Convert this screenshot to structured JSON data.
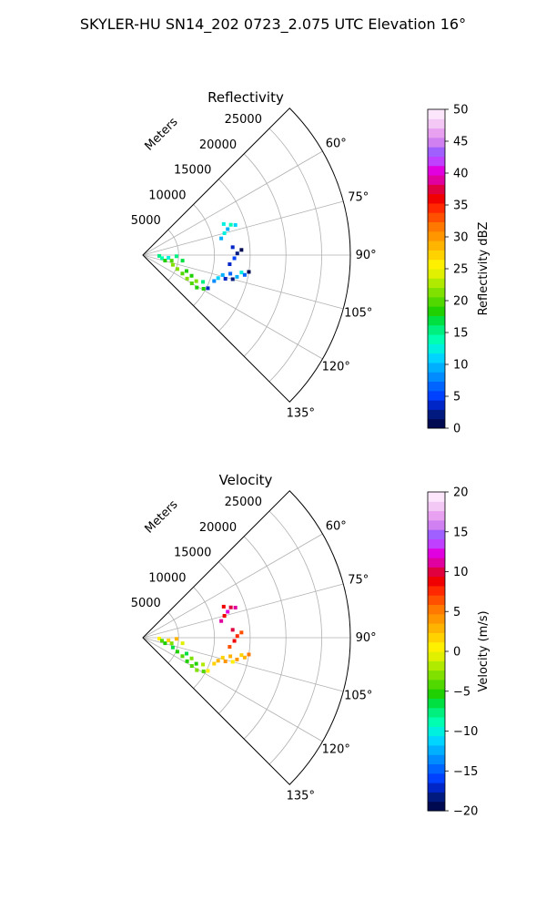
{
  "suptitle": "SKYLER-HU  SN14_202  0723_2.075 UTC Elevation 16°",
  "chart_data": [
    {
      "type": "polar-sector-scatter",
      "title": "Reflectivity",
      "range_label": "Meters",
      "azimuth_ticks": [
        "60°",
        "75°",
        "90°",
        "105°",
        "120°",
        "135°"
      ],
      "azimuth_values_deg": [
        60,
        75,
        90,
        105,
        120,
        135
      ],
      "azimuth_range_deg": [
        45,
        135
      ],
      "range_ticks": [
        5000,
        10000,
        15000,
        20000,
        25000
      ],
      "range_tick_labels": [
        "5000",
        "10000",
        "15000",
        "20000",
        "25000"
      ],
      "range_max": 29000,
      "grid": true,
      "colorbar": {
        "label": "Reflectivity dBZ",
        "ticks": [
          "0",
          "5",
          "10",
          "15",
          "20",
          "25",
          "30",
          "35",
          "40",
          "45",
          "50"
        ],
        "tick_values": [
          0,
          5,
          10,
          15,
          20,
          25,
          30,
          35,
          40,
          45,
          50
        ],
        "vmin": 0,
        "vmax": 50,
        "colormap": [
          "#000a50",
          "#001a80",
          "#0026c8",
          "#0040ff",
          "#0064ff",
          "#008cff",
          "#00b0ff",
          "#00d4ff",
          "#00f0e0",
          "#00ffb0",
          "#00f080",
          "#00e040",
          "#20d000",
          "#50d800",
          "#80e000",
          "#b0ea00",
          "#e0f000",
          "#fff000",
          "#ffd200",
          "#ffb400",
          "#ff9600",
          "#ff7800",
          "#ff5000",
          "#ff2800",
          "#f00000",
          "#e00040",
          "#e000a0",
          "#e000e0",
          "#c040ff",
          "#a060ff",
          "#d080f0",
          "#e8a0f0",
          "#f4c8f4",
          "#fbe6fb"
        ]
      },
      "points": [
        {
          "range": 2300,
          "az": 93,
          "value": 16
        },
        {
          "range": 2700,
          "az": 99,
          "value": 14
        },
        {
          "range": 3200,
          "az": 104,
          "value": 18
        },
        {
          "range": 3600,
          "az": 96,
          "value": 12
        },
        {
          "range": 4100,
          "az": 101,
          "value": 20
        },
        {
          "range": 4400,
          "az": 108,
          "value": 22
        },
        {
          "range": 4700,
          "az": 92,
          "value": 15
        },
        {
          "range": 5200,
          "az": 112,
          "value": 21
        },
        {
          "range": 5600,
          "az": 98,
          "value": 17
        },
        {
          "range": 6100,
          "az": 115,
          "value": 20
        },
        {
          "range": 6500,
          "az": 110,
          "value": 19
        },
        {
          "range": 7000,
          "az": 118,
          "value": 22
        },
        {
          "range": 7400,
          "az": 113,
          "value": 18
        },
        {
          "range": 7900,
          "az": 120,
          "value": 20
        },
        {
          "range": 8300,
          "az": 116,
          "value": 21
        },
        {
          "range": 8800,
          "az": 121,
          "value": 19
        },
        {
          "range": 9200,
          "az": 114,
          "value": 16
        },
        {
          "range": 9700,
          "az": 119,
          "value": 18
        },
        {
          "range": 10200,
          "az": 117,
          "value": 3
        },
        {
          "range": 10600,
          "az": 110,
          "value": 8
        },
        {
          "range": 11000,
          "az": 107,
          "value": 11
        },
        {
          "range": 11500,
          "az": 104,
          "value": 9
        },
        {
          "range": 12000,
          "az": 106,
          "value": 4
        },
        {
          "range": 12500,
          "az": 102,
          "value": 7
        },
        {
          "range": 13000,
          "az": 105,
          "value": 2
        },
        {
          "range": 13500,
          "az": 103,
          "value": 10
        },
        {
          "range": 14000,
          "az": 100,
          "value": 12
        },
        {
          "range": 14500,
          "az": 101,
          "value": 6
        },
        {
          "range": 15000,
          "az": 99,
          "value": 1
        },
        {
          "range": 12200,
          "az": 96,
          "value": 3
        },
        {
          "range": 12800,
          "az": 92,
          "value": 5
        },
        {
          "range": 13200,
          "az": 89,
          "value": 2
        },
        {
          "range": 12600,
          "az": 85,
          "value": 4
        },
        {
          "range": 13800,
          "az": 87,
          "value": 1
        },
        {
          "range": 11200,
          "az": 78,
          "value": 9
        },
        {
          "range": 11800,
          "az": 75,
          "value": 12
        },
        {
          "range": 12400,
          "az": 73,
          "value": 10
        },
        {
          "range": 13000,
          "az": 71,
          "value": 14
        },
        {
          "range": 13600,
          "az": 72,
          "value": 11
        },
        {
          "range": 12100,
          "az": 69,
          "value": 13
        }
      ]
    },
    {
      "type": "polar-sector-scatter",
      "title": "Velocity",
      "range_label": "Meters",
      "azimuth_ticks": [
        "60°",
        "75°",
        "90°",
        "105°",
        "120°",
        "135°"
      ],
      "azimuth_values_deg": [
        60,
        75,
        90,
        105,
        120,
        135
      ],
      "azimuth_range_deg": [
        45,
        135
      ],
      "range_ticks": [
        5000,
        10000,
        15000,
        20000,
        25000
      ],
      "range_tick_labels": [
        "5000",
        "10000",
        "15000",
        "20000",
        "25000"
      ],
      "range_max": 29000,
      "grid": true,
      "colorbar": {
        "label": "Velocity (m/s)",
        "ticks": [
          "−20",
          "−15",
          "−10",
          "−5",
          "0",
          "5",
          "10",
          "15",
          "20"
        ],
        "tick_values": [
          -20,
          -15,
          -10,
          -5,
          0,
          5,
          10,
          15,
          20
        ],
        "vmin": -20,
        "vmax": 20,
        "colormap": [
          "#000a50",
          "#001a80",
          "#0026c8",
          "#0040ff",
          "#0064ff",
          "#008cff",
          "#00b0ff",
          "#00d4ff",
          "#00f0e0",
          "#00ffb0",
          "#00f080",
          "#00e040",
          "#20d000",
          "#50d800",
          "#80e000",
          "#b0ea00",
          "#e0f000",
          "#fff000",
          "#ffd200",
          "#ffb400",
          "#ff9600",
          "#ff7800",
          "#ff5000",
          "#ff2800",
          "#f00000",
          "#e00040",
          "#e000a0",
          "#e000e0",
          "#c040ff",
          "#a060ff",
          "#d080f0",
          "#e8a0f0",
          "#f4c8f4",
          "#fbe6fb"
        ]
      },
      "points": [
        {
          "range": 2300,
          "az": 93,
          "value": 1
        },
        {
          "range": 2700,
          "az": 99,
          "value": -4
        },
        {
          "range": 3200,
          "az": 104,
          "value": -5
        },
        {
          "range": 3600,
          "az": 96,
          "value": 2
        },
        {
          "range": 4100,
          "az": 101,
          "value": -3
        },
        {
          "range": 4400,
          "az": 108,
          "value": -6
        },
        {
          "range": 4700,
          "az": 92,
          "value": 3
        },
        {
          "range": 5200,
          "az": 112,
          "value": -5
        },
        {
          "range": 5600,
          "az": 98,
          "value": -1
        },
        {
          "range": 6100,
          "az": 115,
          "value": -4
        },
        {
          "range": 6500,
          "az": 110,
          "value": -6
        },
        {
          "range": 7000,
          "az": 118,
          "value": -5
        },
        {
          "range": 7400,
          "az": 113,
          "value": -3
        },
        {
          "range": 7900,
          "az": 120,
          "value": -4
        },
        {
          "range": 8300,
          "az": 116,
          "value": -5
        },
        {
          "range": 8800,
          "az": 121,
          "value": -3
        },
        {
          "range": 9200,
          "az": 114,
          "value": -2
        },
        {
          "range": 9700,
          "az": 119,
          "value": -4
        },
        {
          "range": 10200,
          "az": 117,
          "value": 1
        },
        {
          "range": 10600,
          "az": 110,
          "value": 2
        },
        {
          "range": 11000,
          "az": 107,
          "value": 3
        },
        {
          "range": 11500,
          "az": 104,
          "value": 2
        },
        {
          "range": 12000,
          "az": 106,
          "value": 4
        },
        {
          "range": 12500,
          "az": 102,
          "value": 3
        },
        {
          "range": 13000,
          "az": 105,
          "value": 1
        },
        {
          "range": 13500,
          "az": 103,
          "value": 4
        },
        {
          "range": 14000,
          "az": 100,
          "value": 2
        },
        {
          "range": 14500,
          "az": 101,
          "value": 3
        },
        {
          "range": 15000,
          "az": 99,
          "value": 5
        },
        {
          "range": 12200,
          "az": 96,
          "value": 6
        },
        {
          "range": 12800,
          "az": 92,
          "value": 9
        },
        {
          "range": 13200,
          "az": 89,
          "value": 8
        },
        {
          "range": 12600,
          "az": 85,
          "value": 10
        },
        {
          "range": 13800,
          "az": 87,
          "value": 7
        },
        {
          "range": 11200,
          "az": 78,
          "value": 11
        },
        {
          "range": 11800,
          "az": 75,
          "value": 9
        },
        {
          "range": 12400,
          "az": 73,
          "value": 12
        },
        {
          "range": 13000,
          "az": 71,
          "value": 10
        },
        {
          "range": 13600,
          "az": 72,
          "value": 11
        },
        {
          "range": 12100,
          "az": 69,
          "value": 9
        }
      ]
    }
  ]
}
